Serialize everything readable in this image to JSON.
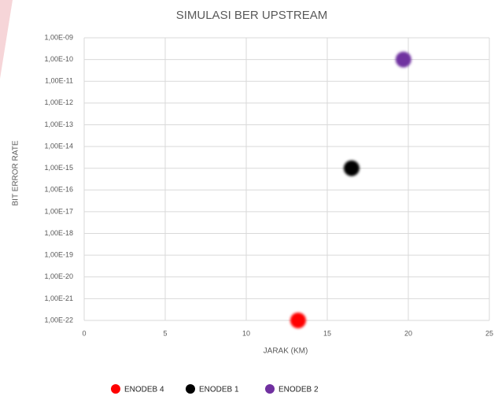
{
  "chart_data": {
    "type": "scatter",
    "title": "SIMULASI BER UPSTREAM",
    "xlabel": "JARAK (KM)",
    "ylabel": "BIT ERROR RATE",
    "yscale": "log",
    "grid": true,
    "legend": "bottom",
    "xlim": [
      0,
      25
    ],
    "xticks": [
      0,
      5,
      10,
      15,
      20,
      25
    ],
    "ylim": [
      1e-22,
      1e-09
    ],
    "yticks": [
      {
        "value": 1e-09,
        "label": "1,00E-09"
      },
      {
        "value": 1e-10,
        "label": "1,00E-10"
      },
      {
        "value": 1e-11,
        "label": "1,00E-11"
      },
      {
        "value": 1e-12,
        "label": "1,00E-12"
      },
      {
        "value": 1e-13,
        "label": "1,00E-13"
      },
      {
        "value": 1e-14,
        "label": "1,00E-14"
      },
      {
        "value": 1e-15,
        "label": "1,00E-15"
      },
      {
        "value": 1e-16,
        "label": "1,00E-16"
      },
      {
        "value": 1e-17,
        "label": "1,00E-17"
      },
      {
        "value": 1e-18,
        "label": "1,00E-18"
      },
      {
        "value": 1e-19,
        "label": "1,00E-19"
      },
      {
        "value": 1e-20,
        "label": "1,00E-20"
      },
      {
        "value": 1e-21,
        "label": "1,00E-21"
      },
      {
        "value": 1e-22,
        "label": "1,00E-22"
      }
    ],
    "series": [
      {
        "name": "ENODEB 4",
        "color": "#ff0000",
        "x": [
          13.2
        ],
        "values": [
          1e-22
        ]
      },
      {
        "name": "ENODEB  1",
        "color": "#000000",
        "x": [
          16.5
        ],
        "values": [
          1e-15
        ]
      },
      {
        "name": "ENODEB 2",
        "color": "#7030a0",
        "x": [
          19.7
        ],
        "values": [
          1e-10
        ]
      }
    ]
  }
}
